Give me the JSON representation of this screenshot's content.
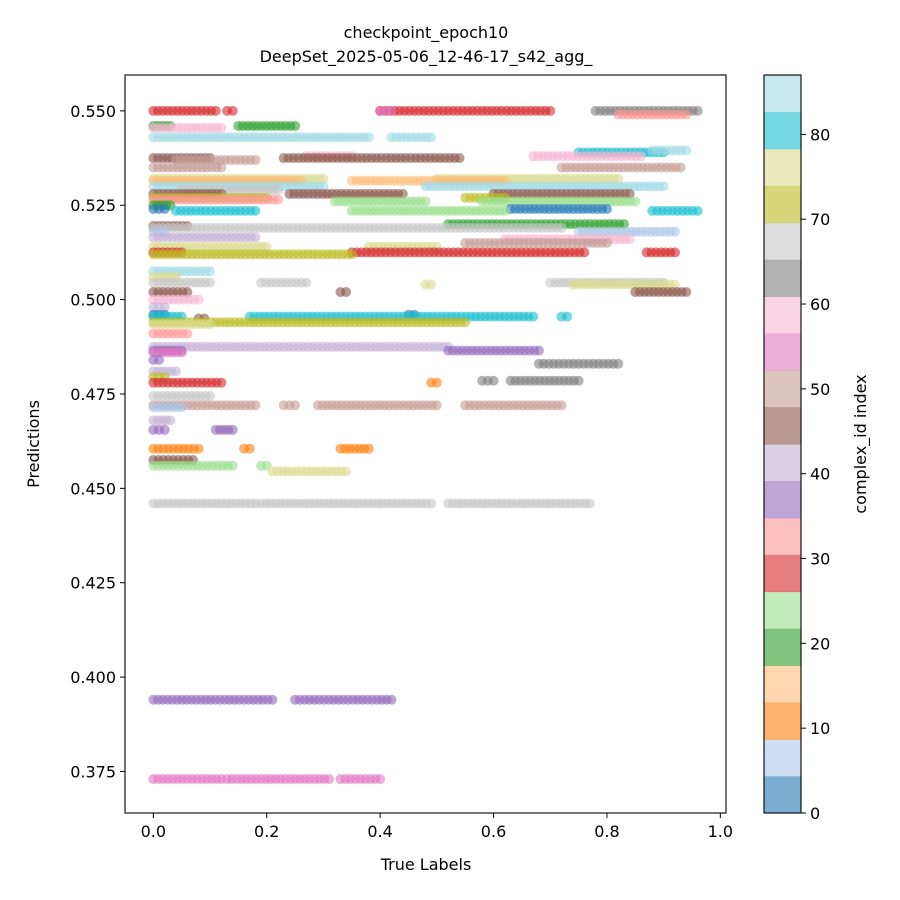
{
  "chart_data": {
    "type": "scatter",
    "title_lines": [
      "checkpoint_epoch10",
      "DeepSet_2025-05-06_12-46-17_s42_agg_"
    ],
    "xlabel": "True Labels",
    "ylabel": "Predictions",
    "xlim": [
      -0.05,
      1.01
    ],
    "ylim": [
      0.364,
      0.5595
    ],
    "xticks": [
      0.0,
      0.2,
      0.4,
      0.6,
      0.8,
      1.0
    ],
    "xtick_labels": [
      "0.0",
      "0.2",
      "0.4",
      "0.6",
      "0.8",
      "1.0"
    ],
    "yticks": [
      0.375,
      0.4,
      0.425,
      0.45,
      0.475,
      0.5,
      0.525,
      0.55
    ],
    "ytick_labels": [
      "0.375",
      "0.400",
      "0.425",
      "0.450",
      "0.475",
      "0.500",
      "0.525",
      "0.550"
    ],
    "grid": false,
    "legend": "none",
    "point_alpha": 0.6,
    "colorbar": {
      "label": "complex_id index",
      "range": [
        0,
        87
      ],
      "ticks": [
        0,
        10,
        20,
        30,
        40,
        50,
        60,
        70,
        80
      ],
      "tick_labels": [
        "0",
        "10",
        "20",
        "30",
        "40",
        "50",
        "60",
        "70",
        "80"
      ],
      "colormap": "tab20",
      "colors": [
        "#1f77b4",
        "#aec7e8",
        "#ff7f0e",
        "#ffbb78",
        "#2ca02c",
        "#98df8a",
        "#d62728",
        "#ff9896",
        "#9467bd",
        "#c5b0d5",
        "#8c564b",
        "#c49c94",
        "#e377c2",
        "#f7b6d2",
        "#7f7f7f",
        "#c7c7c7",
        "#bcbd22",
        "#dbdb8d",
        "#17becf",
        "#9edae5"
      ]
    },
    "bands": [
      {
        "y": 0.55,
        "color": "#d62728",
        "segments": [
          [
            0.0,
            0.11
          ],
          [
            0.13,
            0.14
          ],
          [
            0.4,
            0.7
          ]
        ]
      },
      {
        "y": 0.55,
        "color": "#7f7f7f",
        "segments": [
          [
            0.78,
            0.96
          ]
        ]
      },
      {
        "y": 0.55,
        "color": "#e377c2",
        "segments": [
          [
            0.4,
            0.42
          ]
        ]
      },
      {
        "y": 0.549,
        "color": "#ff9896",
        "segments": [
          [
            0.82,
            0.94
          ]
        ]
      },
      {
        "y": 0.546,
        "color": "#2ca02c",
        "segments": [
          [
            0.0,
            0.03
          ],
          [
            0.15,
            0.25
          ]
        ]
      },
      {
        "y": 0.5455,
        "color": "#f7b6d2",
        "segments": [
          [
            0.0,
            0.12
          ]
        ]
      },
      {
        "y": 0.543,
        "color": "#9edae5",
        "segments": [
          [
            0.0,
            0.38
          ],
          [
            0.42,
            0.49
          ]
        ]
      },
      {
        "y": 0.539,
        "color": "#17becf",
        "segments": [
          [
            0.75,
            0.9
          ]
        ]
      },
      {
        "y": 0.5395,
        "color": "#9edae5",
        "segments": [
          [
            0.88,
            0.94
          ]
        ]
      },
      {
        "y": 0.538,
        "color": "#f7b6d2",
        "segments": [
          [
            0.27,
            0.35
          ],
          [
            0.67,
            0.86
          ]
        ]
      },
      {
        "y": 0.5375,
        "color": "#8c564b",
        "segments": [
          [
            0.0,
            0.1
          ],
          [
            0.23,
            0.54
          ]
        ]
      },
      {
        "y": 0.537,
        "color": "#c49c94",
        "segments": [
          [
            0.04,
            0.18
          ]
        ]
      },
      {
        "y": 0.535,
        "color": "#c49c94",
        "segments": [
          [
            0.0,
            0.12
          ],
          [
            0.72,
            0.93
          ]
        ]
      },
      {
        "y": 0.532,
        "color": "#dbdb8d",
        "segments": [
          [
            0.0,
            0.3
          ],
          [
            0.5,
            0.82
          ]
        ]
      },
      {
        "y": 0.5315,
        "color": "#ffbb78",
        "segments": [
          [
            0.0,
            0.26
          ],
          [
            0.35,
            0.62
          ]
        ]
      },
      {
        "y": 0.53,
        "color": "#9edae5",
        "segments": [
          [
            0.0,
            0.3
          ],
          [
            0.48,
            0.9
          ]
        ]
      },
      {
        "y": 0.529,
        "color": "#c7c7c7",
        "segments": [
          [
            0.05,
            0.22
          ]
        ]
      },
      {
        "y": 0.528,
        "color": "#8c564b",
        "segments": [
          [
            0.0,
            0.12
          ],
          [
            0.24,
            0.44
          ],
          [
            0.6,
            0.84
          ]
        ]
      },
      {
        "y": 0.527,
        "color": "#bcbd22",
        "segments": [
          [
            0.0,
            0.2
          ],
          [
            0.55,
            0.62
          ]
        ]
      },
      {
        "y": 0.5265,
        "color": "#ff9896",
        "segments": [
          [
            0.0,
            0.22
          ]
        ]
      },
      {
        "y": 0.526,
        "color": "#98df8a",
        "segments": [
          [
            0.32,
            0.48
          ],
          [
            0.58,
            0.85
          ]
        ]
      },
      {
        "y": 0.525,
        "color": "#2ca02c",
        "segments": [
          [
            0.0,
            0.03
          ]
        ]
      },
      {
        "y": 0.524,
        "color": "#1f77b4",
        "segments": [
          [
            0.0,
            0.02
          ],
          [
            0.63,
            0.8
          ]
        ]
      },
      {
        "y": 0.5235,
        "color": "#17becf",
        "segments": [
          [
            0.04,
            0.18
          ],
          [
            0.88,
            0.96
          ]
        ]
      },
      {
        "y": 0.5235,
        "color": "#98df8a",
        "segments": [
          [
            0.35,
            0.62
          ]
        ]
      },
      {
        "y": 0.52,
        "color": "#2ca02c",
        "segments": [
          [
            0.52,
            0.83
          ]
        ]
      },
      {
        "y": 0.5195,
        "color": "#8c564b",
        "segments": [
          [
            0.0,
            0.06
          ]
        ]
      },
      {
        "y": 0.519,
        "color": "#c7c7c7",
        "segments": [
          [
            0.0,
            0.72
          ]
        ]
      },
      {
        "y": 0.518,
        "color": "#aec7e8",
        "segments": [
          [
            0.0,
            0.02
          ],
          [
            0.75,
            0.92
          ]
        ]
      },
      {
        "y": 0.5165,
        "color": "#c5b0d5",
        "segments": [
          [
            0.0,
            0.18
          ]
        ]
      },
      {
        "y": 0.516,
        "color": "#f7b6d2",
        "segments": [
          [
            0.62,
            0.84
          ]
        ]
      },
      {
        "y": 0.515,
        "color": "#c49c94",
        "segments": [
          [
            0.55,
            0.8
          ]
        ]
      },
      {
        "y": 0.514,
        "color": "#dbdb8d",
        "segments": [
          [
            0.0,
            0.2
          ],
          [
            0.38,
            0.5
          ]
        ]
      },
      {
        "y": 0.5125,
        "color": "#d62728",
        "segments": [
          [
            0.0,
            0.05
          ],
          [
            0.35,
            0.76
          ],
          [
            0.87,
            0.92
          ]
        ]
      },
      {
        "y": 0.512,
        "color": "#bcbd22",
        "segments": [
          [
            0.0,
            0.35
          ]
        ]
      },
      {
        "y": 0.5075,
        "color": "#9edae5",
        "segments": [
          [
            0.0,
            0.1
          ]
        ]
      },
      {
        "y": 0.506,
        "color": "#dbdb8d",
        "segments": [
          [
            0.0,
            0.04
          ]
        ]
      },
      {
        "y": 0.5045,
        "color": "#c7c7c7",
        "segments": [
          [
            0.0,
            0.1
          ],
          [
            0.19,
            0.27
          ],
          [
            0.7,
            0.9
          ]
        ]
      },
      {
        "y": 0.504,
        "color": "#dbdb8d",
        "segments": [
          [
            0.48,
            0.49
          ],
          [
            0.74,
            0.92
          ]
        ]
      },
      {
        "y": 0.502,
        "color": "#8c564b",
        "segments": [
          [
            0.0,
            0.06
          ],
          [
            0.33,
            0.34
          ],
          [
            0.85,
            0.94
          ]
        ]
      },
      {
        "y": 0.5,
        "color": "#f7b6d2",
        "segments": [
          [
            0.0,
            0.08
          ]
        ]
      },
      {
        "y": 0.498,
        "color": "#c5b0d5",
        "segments": [
          [
            0.0,
            0.02
          ]
        ]
      },
      {
        "y": 0.496,
        "color": "#1f77b4",
        "segments": [
          [
            0.0,
            0.02
          ],
          [
            0.45,
            0.46
          ]
        ]
      },
      {
        "y": 0.4955,
        "color": "#17becf",
        "segments": [
          [
            0.0,
            0.05
          ],
          [
            0.17,
            0.67
          ],
          [
            0.72,
            0.73
          ]
        ]
      },
      {
        "y": 0.495,
        "color": "#8c564b",
        "segments": [
          [
            0.08,
            0.09
          ]
        ]
      },
      {
        "y": 0.494,
        "color": "#bcbd22",
        "segments": [
          [
            0.0,
            0.55
          ]
        ]
      },
      {
        "y": 0.4935,
        "color": "#dbdb8d",
        "segments": [
          [
            0.0,
            0.1
          ]
        ]
      },
      {
        "y": 0.491,
        "color": "#ff9896",
        "segments": [
          [
            0.0,
            0.06
          ]
        ]
      },
      {
        "y": 0.4875,
        "color": "#c5b0d5",
        "segments": [
          [
            0.0,
            0.52
          ]
        ]
      },
      {
        "y": 0.4865,
        "color": "#9467bd",
        "segments": [
          [
            0.0,
            0.05
          ],
          [
            0.52,
            0.68
          ]
        ]
      },
      {
        "y": 0.486,
        "color": "#e377c2",
        "segments": [
          [
            0.0,
            0.05
          ]
        ]
      },
      {
        "y": 0.484,
        "color": "#9467bd",
        "segments": [
          [
            0.0,
            0.01
          ]
        ]
      },
      {
        "y": 0.483,
        "color": "#7f7f7f",
        "segments": [
          [
            0.68,
            0.82
          ]
        ]
      },
      {
        "y": 0.481,
        "color": "#c5b0d5",
        "segments": [
          [
            0.0,
            0.04
          ]
        ]
      },
      {
        "y": 0.4795,
        "color": "#bcbd22",
        "segments": [
          [
            0.0,
            0.02
          ]
        ]
      },
      {
        "y": 0.4785,
        "color": "#7f7f7f",
        "segments": [
          [
            0.58,
            0.6
          ],
          [
            0.63,
            0.75
          ]
        ]
      },
      {
        "y": 0.478,
        "color": "#d62728",
        "segments": [
          [
            0.0,
            0.12
          ]
        ]
      },
      {
        "y": 0.478,
        "color": "#ff7f0e",
        "segments": [
          [
            0.49,
            0.5
          ]
        ]
      },
      {
        "y": 0.4745,
        "color": "#c7c7c7",
        "segments": [
          [
            0.0,
            0.1
          ]
        ]
      },
      {
        "y": 0.472,
        "color": "#c49c94",
        "segments": [
          [
            0.0,
            0.18
          ],
          [
            0.23,
            0.25
          ],
          [
            0.29,
            0.5
          ],
          [
            0.55,
            0.72
          ]
        ]
      },
      {
        "y": 0.4715,
        "color": "#aec7e8",
        "segments": [
          [
            0.0,
            0.05
          ]
        ]
      },
      {
        "y": 0.468,
        "color": "#c5b0d5",
        "segments": [
          [
            0.0,
            0.03
          ]
        ]
      },
      {
        "y": 0.4655,
        "color": "#9467bd",
        "segments": [
          [
            0.0,
            0.02
          ],
          [
            0.11,
            0.14
          ]
        ]
      },
      {
        "y": 0.4605,
        "color": "#ff7f0e",
        "segments": [
          [
            0.0,
            0.08
          ],
          [
            0.16,
            0.17
          ],
          [
            0.33,
            0.38
          ]
        ]
      },
      {
        "y": 0.4575,
        "color": "#8c564b",
        "segments": [
          [
            0.0,
            0.07
          ]
        ]
      },
      {
        "y": 0.456,
        "color": "#98df8a",
        "segments": [
          [
            0.0,
            0.14
          ],
          [
            0.19,
            0.2
          ]
        ]
      },
      {
        "y": 0.4545,
        "color": "#dbdb8d",
        "segments": [
          [
            0.21,
            0.34
          ]
        ]
      },
      {
        "y": 0.446,
        "color": "#c7c7c7",
        "segments": [
          [
            0.0,
            0.18
          ],
          [
            0.19,
            0.49
          ],
          [
            0.52,
            0.77
          ]
        ]
      },
      {
        "y": 0.394,
        "color": "#9467bd",
        "segments": [
          [
            0.0,
            0.21
          ],
          [
            0.25,
            0.42
          ]
        ]
      },
      {
        "y": 0.373,
        "color": "#e377c2",
        "segments": [
          [
            0.0,
            0.12
          ],
          [
            0.13,
            0.31
          ],
          [
            0.33,
            0.4
          ]
        ]
      }
    ]
  }
}
